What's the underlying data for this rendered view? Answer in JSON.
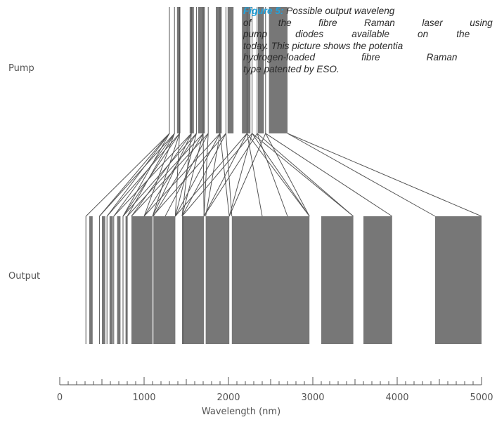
{
  "caption": {
    "lead": "Figure 5:",
    "lines": [
      "Possible output waveleng",
      "of the fibre Raman laser using c",
      "pump diodes available on the marke",
      "today. This picture shows the potentia",
      "hydrogen-loaded fibre Raman laser",
      "type patented by ESO."
    ]
  },
  "labels": {
    "pump": "Pump",
    "output": "Output"
  },
  "axis": {
    "title": "Wavelength (nm)",
    "range": [
      0,
      5000
    ],
    "ticks": [
      "0",
      "1000",
      "2000",
      "3000",
      "4000",
      "5000"
    ],
    "tick_values": [
      0,
      1000,
      2000,
      3000,
      4000,
      5000
    ]
  },
  "colors": {
    "band": "#777777",
    "line": "#555555",
    "caption_lead": "#22a3dd"
  },
  "pump_lines": [
    {
      "x": 1300
    },
    {
      "x": 1360
    },
    {
      "x": 1420
    },
    {
      "x": 1560
    },
    {
      "x": 1620
    },
    {
      "x": 1700
    },
    {
      "x": 1760
    },
    {
      "x": 1900
    },
    {
      "x": 1970
    },
    {
      "x": 2220
    },
    {
      "x": 2280
    },
    {
      "x": 2340
    },
    {
      "x": 2440
    }
  ],
  "pump_bands": [
    {
      "start": 1390,
      "end": 1430
    },
    {
      "start": 1540,
      "end": 1590
    },
    {
      "start": 1640,
      "end": 1720
    },
    {
      "start": 1850,
      "end": 1920
    },
    {
      "start": 1990,
      "end": 2060
    },
    {
      "start": 2160,
      "end": 2260
    },
    {
      "start": 2350,
      "end": 2420
    },
    {
      "start": 2480,
      "end": 2700
    }
  ],
  "output_lines": [
    {
      "x": 310
    },
    {
      "x": 470
    },
    {
      "x": 560
    },
    {
      "x": 640
    },
    {
      "x": 750
    },
    {
      "x": 800
    },
    {
      "x": 1460
    }
  ],
  "output_bands": [
    {
      "start": 350,
      "end": 390
    },
    {
      "start": 500,
      "end": 540
    },
    {
      "start": 590,
      "end": 630
    },
    {
      "start": 680,
      "end": 720
    },
    {
      "start": 780,
      "end": 800
    },
    {
      "start": 850,
      "end": 1100
    },
    {
      "start": 1110,
      "end": 1370
    },
    {
      "start": 1450,
      "end": 1710
    },
    {
      "start": 1730,
      "end": 2010
    },
    {
      "start": 2040,
      "end": 2960
    },
    {
      "start": 3100,
      "end": 3480
    },
    {
      "start": 3600,
      "end": 3940
    },
    {
      "start": 4450,
      "end": 5000
    }
  ],
  "connections": [
    {
      "from": 1300,
      "to": 310
    },
    {
      "from": 1300,
      "to": 470
    },
    {
      "from": 1300,
      "to": 560
    },
    {
      "from": 1300,
      "to": 750
    },
    {
      "from": 1360,
      "to": 470
    },
    {
      "from": 1360,
      "to": 640
    },
    {
      "from": 1360,
      "to": 800
    },
    {
      "from": 1360,
      "to": 1000
    },
    {
      "from": 1420,
      "to": 560
    },
    {
      "from": 1420,
      "to": 750
    },
    {
      "from": 1420,
      "to": 1100
    },
    {
      "from": 1420,
      "to": 1370
    },
    {
      "from": 1560,
      "to": 640
    },
    {
      "from": 1560,
      "to": 850
    },
    {
      "from": 1560,
      "to": 1100
    },
    {
      "from": 1560,
      "to": 1450
    },
    {
      "from": 1620,
      "to": 750
    },
    {
      "from": 1620,
      "to": 1000
    },
    {
      "from": 1620,
      "to": 1370
    },
    {
      "from": 1700,
      "to": 800
    },
    {
      "from": 1700,
      "to": 1110
    },
    {
      "from": 1700,
      "to": 1450
    },
    {
      "from": 1700,
      "to": 1710
    },
    {
      "from": 1760,
      "to": 850
    },
    {
      "from": 1760,
      "to": 1250
    },
    {
      "from": 1760,
      "to": 1710
    },
    {
      "from": 1900,
      "to": 1000
    },
    {
      "from": 1900,
      "to": 1370
    },
    {
      "from": 1900,
      "to": 1730
    },
    {
      "from": 1900,
      "to": 2010
    },
    {
      "from": 1970,
      "to": 1100
    },
    {
      "from": 1970,
      "to": 1450
    },
    {
      "from": 1970,
      "to": 2040
    },
    {
      "from": 2220,
      "to": 1370
    },
    {
      "from": 2220,
      "to": 1710
    },
    {
      "from": 2220,
      "to": 2400
    },
    {
      "from": 2220,
      "to": 2960
    },
    {
      "from": 2280,
      "to": 1450
    },
    {
      "from": 2280,
      "to": 2010
    },
    {
      "from": 2280,
      "to": 2960
    },
    {
      "from": 2280,
      "to": 3480
    },
    {
      "from": 2340,
      "to": 1710
    },
    {
      "from": 2340,
      "to": 2700
    },
    {
      "from": 2340,
      "to": 3480
    },
    {
      "from": 2440,
      "to": 2010
    },
    {
      "from": 2440,
      "to": 2960
    },
    {
      "from": 2440,
      "to": 3940
    },
    {
      "from": 2700,
      "to": 4450
    },
    {
      "from": 2700,
      "to": 5000
    }
  ]
}
